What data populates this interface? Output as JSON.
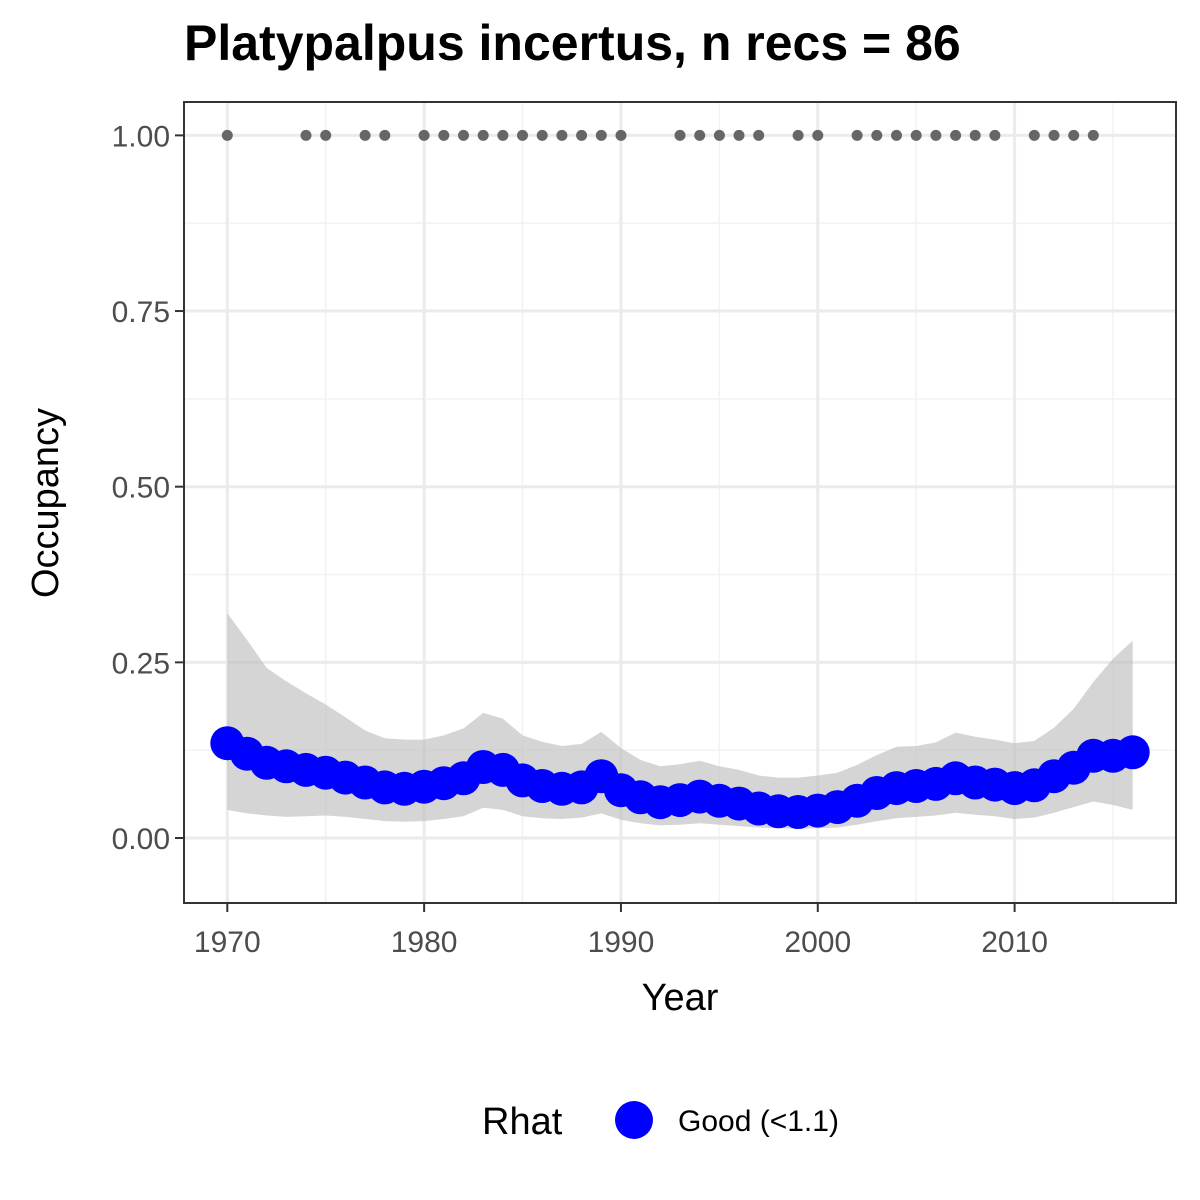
{
  "chart_data": {
    "type": "line",
    "title": "Platypalpus incertus, n recs = 86",
    "xlabel": "Year",
    "ylabel": "Occupancy",
    "xlim": [
      1967.8,
      1918.2
    ],
    "ylim": [
      -0.0925,
      1.0475
    ],
    "x_ticks": [
      1970,
      1980,
      1990,
      2000,
      2010
    ],
    "x_tick_labels": [
      "1970",
      "1980",
      "1990",
      "2000",
      "2010"
    ],
    "y_ticks": [
      0,
      0.25,
      0.5,
      0.75,
      1.0
    ],
    "y_tick_labels": [
      "0.00",
      "0.25",
      "0.50",
      "0.75",
      "1.00"
    ],
    "grid": true,
    "legend": {
      "title": "Rhat",
      "position": "bottom",
      "entries": [
        {
          "label": "Good (<1.1)",
          "color": "#0000ff"
        }
      ]
    },
    "series": [
      {
        "name": "Good (<1.1)",
        "color": "#0000ff",
        "years": [
          1970,
          1971,
          1972,
          1973,
          1974,
          1975,
          1976,
          1977,
          1978,
          1979,
          1980,
          1981,
          1982,
          1983,
          1984,
          1985,
          1986,
          1987,
          1988,
          1989,
          1990,
          1991,
          1992,
          1993,
          1994,
          1995,
          1996,
          1997,
          1998,
          1999,
          2000,
          2001,
          2002,
          2003,
          2004,
          2005,
          2006,
          2007,
          2008,
          2009,
          2010,
          2011,
          2012,
          2013,
          2014,
          2015,
          2016
        ],
        "occupancy": [
          0.135,
          0.12,
          0.107,
          0.102,
          0.097,
          0.093,
          0.086,
          0.079,
          0.072,
          0.07,
          0.073,
          0.078,
          0.085,
          0.101,
          0.097,
          0.082,
          0.074,
          0.07,
          0.072,
          0.088,
          0.068,
          0.058,
          0.051,
          0.054,
          0.059,
          0.053,
          0.049,
          0.042,
          0.038,
          0.037,
          0.039,
          0.044,
          0.053,
          0.064,
          0.071,
          0.074,
          0.077,
          0.085,
          0.079,
          0.076,
          0.071,
          0.075,
          0.088,
          0.1,
          0.117,
          0.117,
          0.122
        ],
        "lower": [
          0.04,
          0.035,
          0.032,
          0.03,
          0.031,
          0.032,
          0.03,
          0.027,
          0.024,
          0.023,
          0.024,
          0.027,
          0.031,
          0.043,
          0.04,
          0.031,
          0.028,
          0.027,
          0.029,
          0.035,
          0.026,
          0.021,
          0.018,
          0.019,
          0.021,
          0.019,
          0.017,
          0.015,
          0.014,
          0.013,
          0.014,
          0.015,
          0.019,
          0.024,
          0.028,
          0.03,
          0.032,
          0.036,
          0.033,
          0.031,
          0.027,
          0.029,
          0.036,
          0.044,
          0.052,
          0.047,
          0.04
        ],
        "upper": [
          0.32,
          0.282,
          0.242,
          0.223,
          0.206,
          0.19,
          0.172,
          0.153,
          0.142,
          0.14,
          0.14,
          0.146,
          0.156,
          0.178,
          0.17,
          0.146,
          0.137,
          0.131,
          0.134,
          0.151,
          0.128,
          0.111,
          0.102,
          0.105,
          0.11,
          0.102,
          0.097,
          0.089,
          0.086,
          0.086,
          0.089,
          0.093,
          0.104,
          0.118,
          0.13,
          0.131,
          0.136,
          0.15,
          0.144,
          0.14,
          0.135,
          0.138,
          0.157,
          0.184,
          0.222,
          0.255,
          0.281
        ]
      },
      {
        "name": "Records",
        "color": "#666666",
        "years": [
          1970,
          1974,
          1975,
          1977,
          1978,
          1980,
          1981,
          1982,
          1983,
          1984,
          1985,
          1986,
          1987,
          1988,
          1989,
          1990,
          1993,
          1994,
          1995,
          1996,
          1997,
          1999,
          2000,
          2002,
          2003,
          2004,
          2005,
          2006,
          2007,
          2008,
          2009,
          2011,
          2012,
          2013,
          2014
        ],
        "value": 1.0
      }
    ]
  }
}
